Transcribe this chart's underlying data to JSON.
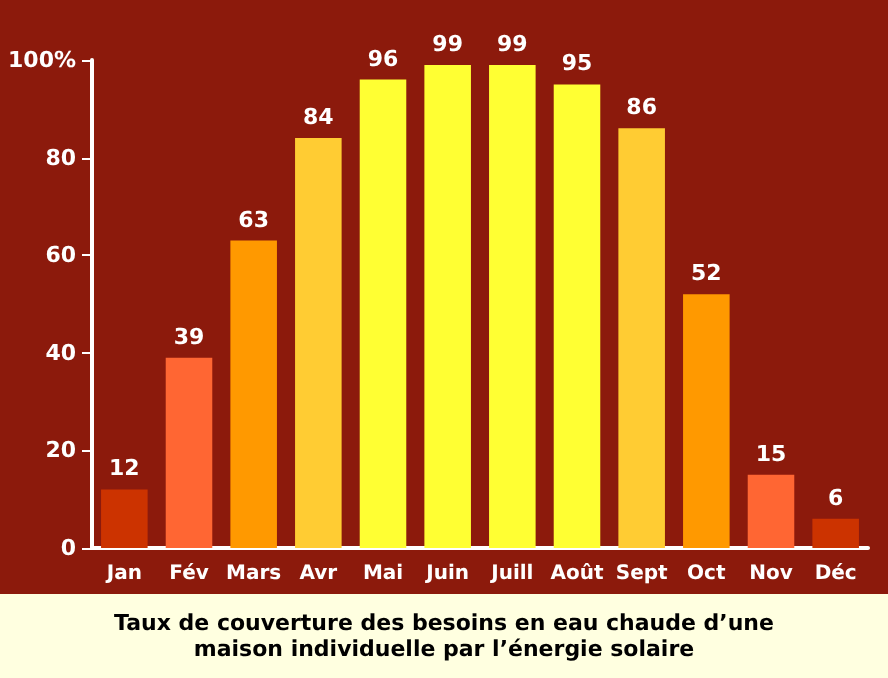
{
  "chart_data": {
    "type": "bar",
    "title": "Taux de couverture des besoins en eau chaude d’une maison individuelle par l’énergie solaire",
    "categories": [
      "Jan",
      "Fév",
      "Mars",
      "Avr",
      "Mai",
      "Juin",
      "Juill",
      "Août",
      "Sept",
      "Oct",
      "Nov",
      "Déc"
    ],
    "values": [
      12,
      39,
      63,
      84,
      96,
      99,
      99,
      95,
      86,
      52,
      15,
      6
    ],
    "colors": [
      "#cc3300",
      "#ff6633",
      "#ff9900",
      "#ffcc33",
      "#ffff33",
      "#ffff33",
      "#ffff33",
      "#ffff33",
      "#ffcc33",
      "#ff9900",
      "#ff6633",
      "#cc3300"
    ],
    "ylim": [
      0,
      100
    ],
    "yticks": [
      0,
      20,
      40,
      60,
      80,
      {
        "value": 100,
        "label": "100%"
      }
    ],
    "data_labels": true,
    "grid": false
  }
}
